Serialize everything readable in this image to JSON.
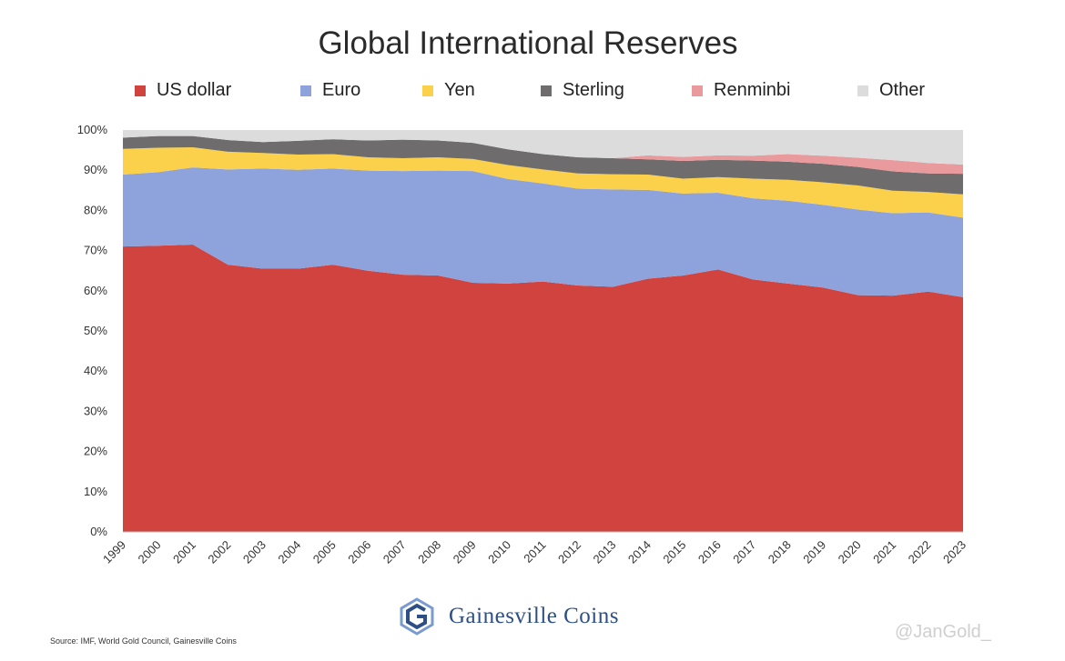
{
  "chart_data": {
    "type": "area",
    "stacked": true,
    "title": "Global International Reserves",
    "ylim": [
      0,
      100
    ],
    "y_ticks": [
      "0%",
      "10%",
      "20%",
      "30%",
      "40%",
      "50%",
      "60%",
      "70%",
      "80%",
      "90%",
      "100%"
    ],
    "x": [
      "1999",
      "2000",
      "2001",
      "2002",
      "2003",
      "2004",
      "2005",
      "2006",
      "2007",
      "2008",
      "2009",
      "2010",
      "2011",
      "2012",
      "2013",
      "2014",
      "2015",
      "2016",
      "2017",
      "2018",
      "2019",
      "2020",
      "2021",
      "2022",
      "2023"
    ],
    "legend_position": "top",
    "series": [
      {
        "name": "US dollar",
        "color": "#d0433f",
        "values": [
          71.0,
          71.2,
          71.5,
          66.5,
          65.5,
          65.5,
          66.5,
          65.0,
          64.0,
          63.8,
          62.0,
          61.8,
          62.3,
          61.3,
          61.0,
          63.0,
          63.8,
          65.3,
          62.8,
          61.8,
          60.8,
          58.9,
          58.8,
          59.8,
          58.4
        ]
      },
      {
        "name": "Euro",
        "color": "#8ea3dc",
        "values": [
          17.9,
          18.3,
          19.2,
          23.7,
          24.9,
          24.6,
          23.9,
          24.9,
          25.8,
          26.1,
          27.8,
          26.0,
          24.4,
          24.1,
          24.2,
          22.1,
          20.4,
          19.1,
          20.2,
          20.6,
          20.6,
          21.3,
          20.5,
          19.7,
          19.8
        ]
      },
      {
        "name": "Yen",
        "color": "#fbd04a",
        "values": [
          6.4,
          6.1,
          5.0,
          4.4,
          3.9,
          3.8,
          3.6,
          3.3,
          3.2,
          3.3,
          3.0,
          3.5,
          3.5,
          3.8,
          3.8,
          3.8,
          3.7,
          3.9,
          4.9,
          5.2,
          5.6,
          6.0,
          5.6,
          5.1,
          5.8
        ]
      },
      {
        "name": "Sterling",
        "color": "#6e6c6c",
        "values": [
          2.8,
          2.9,
          2.8,
          2.9,
          2.7,
          3.4,
          3.7,
          4.2,
          4.6,
          4.2,
          4.0,
          3.9,
          3.8,
          4.0,
          4.0,
          3.8,
          4.4,
          4.3,
          4.5,
          4.5,
          4.6,
          4.6,
          4.8,
          4.6,
          5.1
        ]
      },
      {
        "name": "Renminbi",
        "color": "#e89a9d",
        "values": [
          0,
          0,
          0,
          0,
          0,
          0,
          0,
          0,
          0,
          0,
          0,
          0,
          0,
          0,
          0,
          1.0,
          1.0,
          1.1,
          1.2,
          1.9,
          2.0,
          2.3,
          2.8,
          2.6,
          2.3
        ]
      },
      {
        "name": "Other",
        "color": "#dcdcdc",
        "values": [
          1.9,
          1.5,
          1.5,
          2.5,
          3.0,
          2.7,
          2.3,
          2.6,
          2.4,
          2.6,
          3.2,
          4.8,
          6.0,
          6.8,
          7.0,
          6.3,
          6.7,
          6.3,
          6.4,
          6.0,
          6.4,
          6.9,
          7.5,
          8.2,
          8.6
        ]
      }
    ]
  },
  "branding": {
    "logo_text": "Gainesville Coins",
    "source": "Source: IMF, World Gold Council, Gainesville Coins",
    "watermark": "@JanGold_"
  },
  "logo_colors": {
    "primary": "#2e4f86",
    "secondary": "#7a9bd0"
  }
}
